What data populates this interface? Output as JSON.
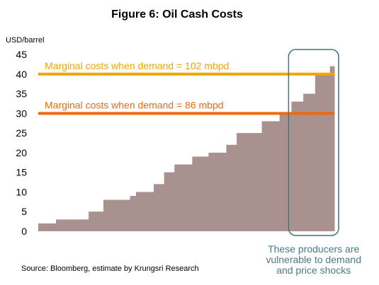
{
  "chart_data": {
    "type": "area",
    "title": "Figure 6: Oil Cash Costs",
    "ylabel": "USD/barrel",
    "xlabel": "",
    "ylim": [
      0,
      45
    ],
    "yticks": [
      0,
      5,
      10,
      15,
      20,
      25,
      30,
      35,
      40,
      45
    ],
    "grid": false,
    "steps": [
      {
        "cum": 0.0,
        "value": 2
      },
      {
        "cum": 0.06,
        "value": 3
      },
      {
        "cum": 0.17,
        "value": 5
      },
      {
        "cum": 0.22,
        "value": 8
      },
      {
        "cum": 0.31,
        "value": 9
      },
      {
        "cum": 0.33,
        "value": 10
      },
      {
        "cum": 0.39,
        "value": 12
      },
      {
        "cum": 0.425,
        "value": 15
      },
      {
        "cum": 0.46,
        "value": 17
      },
      {
        "cum": 0.52,
        "value": 19
      },
      {
        "cum": 0.575,
        "value": 20
      },
      {
        "cum": 0.635,
        "value": 22
      },
      {
        "cum": 0.67,
        "value": 25
      },
      {
        "cum": 0.755,
        "value": 28
      },
      {
        "cum": 0.815,
        "value": 30
      },
      {
        "cum": 0.855,
        "value": 33
      },
      {
        "cum": 0.895,
        "value": 35
      },
      {
        "cum": 0.935,
        "value": 40
      },
      {
        "cum": 0.985,
        "value": 42
      },
      {
        "cum": 1.0,
        "value": 42
      }
    ],
    "reference_lines": [
      {
        "value": 40,
        "label": "Marginal costs when demand = 102 mbpd",
        "color": "#f2a500"
      },
      {
        "value": 30,
        "label": "Marginal costs when demand = 86 mbpd",
        "color": "#ee6a10"
      }
    ],
    "area_color": "#a8918f",
    "highlight": {
      "from_cum": 0.855,
      "to_cum": 1.0,
      "color": "#3b7784",
      "note": [
        "These producers are",
        "vulnerable to demand",
        "and price shocks"
      ]
    },
    "source": "Source: Bloomberg, estimate by Krungsri Research"
  }
}
